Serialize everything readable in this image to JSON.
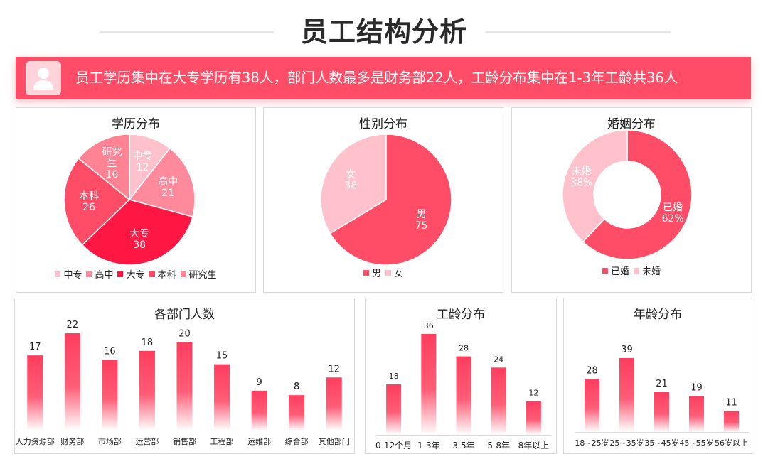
{
  "page_title": "员工结构分析",
  "banner_text": "员工学历集中在大专学历有38人，部门人数最多是财务部22人，工龄分布集中在1-3年工龄共36人",
  "colors": {
    "accent": "#ff4d67",
    "avatar_bg": "#ffd3da"
  },
  "chart_data": [
    {
      "id": "education",
      "type": "pie",
      "title": "学历分布",
      "categories": [
        "中专",
        "高中",
        "大专",
        "本科",
        "研究生"
      ],
      "labels": [
        "中专",
        "高中",
        "大专",
        "本科",
        "研究\n生"
      ],
      "values": [
        12,
        21,
        38,
        26,
        16
      ],
      "colors": [
        "#ffc1cc",
        "#ff8a9b",
        "#ff1744",
        "#ff4d67",
        "#ff8393"
      ],
      "legend_position": "bottom"
    },
    {
      "id": "gender",
      "type": "pie",
      "title": "性别分布",
      "categories": [
        "男",
        "女"
      ],
      "values": [
        75,
        38
      ],
      "colors": [
        "#ff4d67",
        "#ffc1cc"
      ],
      "legend_position": "bottom"
    },
    {
      "id": "marriage",
      "type": "donut",
      "title": "婚姻分布",
      "categories": [
        "已婚",
        "未婚"
      ],
      "values": [
        62,
        38
      ],
      "value_labels": [
        "62%",
        "38%"
      ],
      "colors": [
        "#ff4d67",
        "#ffc1cc"
      ],
      "legend_position": "bottom"
    },
    {
      "id": "department",
      "type": "bar",
      "title": "各部门人数",
      "categories": [
        "人力资源部",
        "财务部",
        "市场部",
        "运营部",
        "销售部",
        "工程部",
        "运维部",
        "综合部",
        "其他部门"
      ],
      "values": [
        17,
        22,
        16,
        18,
        20,
        15,
        9,
        8,
        12
      ],
      "ylim": [
        0,
        22
      ]
    },
    {
      "id": "tenure",
      "type": "bar",
      "title": "工龄分布",
      "categories": [
        "0-12个月",
        "1-3年",
        "3-5年",
        "5-8年",
        "8年以上"
      ],
      "values": [
        18,
        36,
        28,
        24,
        12
      ],
      "ylim": [
        0,
        36
      ]
    },
    {
      "id": "age",
      "type": "bar",
      "title": "年龄分布",
      "categories": [
        "18~25岁",
        "25~35岁",
        "35~45岁",
        "45~55岁",
        "56岁以上"
      ],
      "values": [
        28,
        39,
        21,
        19,
        11
      ],
      "ylim": [
        0,
        39
      ]
    }
  ]
}
